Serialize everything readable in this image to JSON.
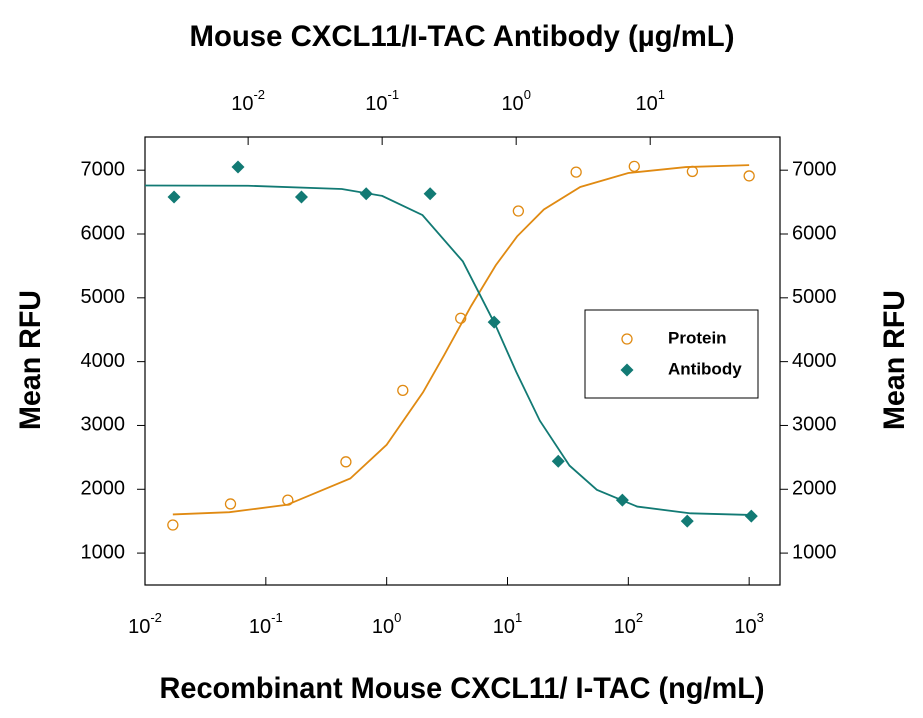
{
  "chart_data": {
    "type": "scatter",
    "xlabel": "Recombinant Mouse CXCL11/ I-TAC (ng/mL)",
    "x2label": "Mouse CXCL11/I-TAC Antibody (µg/mL)",
    "ylabel": "Mean RFU",
    "y2label": "Mean RFU",
    "xlog": true,
    "x2log": true,
    "xlim": [
      0.01,
      1800
    ],
    "x2lim": [
      0.0017,
      93
    ],
    "ylim": [
      500,
      7520
    ],
    "y2lim": [
      500,
      7520
    ],
    "xticks": [
      {
        "value": 0.01,
        "label": "10",
        "exponent": "-2"
      },
      {
        "value": 0.1,
        "label": "10",
        "exponent": "-1"
      },
      {
        "value": 1,
        "label": "10",
        "exponent": "0"
      },
      {
        "value": 10,
        "label": "10",
        "exponent": "1"
      },
      {
        "value": 100,
        "label": "10",
        "exponent": "2"
      },
      {
        "value": 1000,
        "label": "10",
        "exponent": "3"
      }
    ],
    "x2ticks": [
      {
        "value": 0.01,
        "label": "10",
        "exponent": "-2"
      },
      {
        "value": 0.1,
        "label": "10",
        "exponent": "-1"
      },
      {
        "value": 1,
        "label": "10",
        "exponent": "0"
      },
      {
        "value": 10,
        "label": "10",
        "exponent": "1"
      }
    ],
    "yticks": [
      1000,
      2000,
      3000,
      4000,
      5000,
      6000,
      7000
    ],
    "y2ticks": [
      1000,
      2000,
      3000,
      4000,
      5000,
      6000,
      7000
    ],
    "legend": "right",
    "series": [
      {
        "name": "Protein",
        "axis": "x",
        "marker": "open-circle",
        "color": "#e08a12",
        "x": [
          0.017,
          0.051,
          0.152,
          0.46,
          1.36,
          4.1,
          12.3,
          37,
          112,
          339,
          1000
        ],
        "values": [
          1440,
          1770,
          1830,
          2430,
          3550,
          4680,
          6360,
          6970,
          7060,
          6980,
          6910
        ],
        "fit": {
          "x": [
            0.017,
            0.05,
            0.15,
            0.5,
            1,
            2,
            3,
            5,
            8,
            12,
            20,
            40,
            100,
            300,
            1000
          ],
          "values": [
            1606,
            1641,
            1757,
            2169,
            2697,
            3520,
            4107,
            4872,
            5510,
            5962,
            6385,
            6737,
            6956,
            7049,
            7079
          ]
        }
      },
      {
        "name": "Antibody",
        "axis": "x2",
        "marker": "diamond",
        "color": "#127a74",
        "x": [
          0.0028,
          0.0084,
          0.025,
          0.076,
          0.228,
          0.685,
          2.06,
          6.2,
          18.9,
          56.8
        ],
        "values": [
          6580,
          7050,
          6580,
          6630,
          6630,
          4620,
          2440,
          1830,
          1500,
          1580
        ],
        "fit": {
          "x": [
            0.0017,
            0.01,
            0.05,
            0.1,
            0.2,
            0.4,
            0.7,
            1,
            1.5,
            2.5,
            4,
            8,
            20,
            60
          ],
          "values": [
            6760,
            6756,
            6705,
            6597,
            6296,
            5570,
            4573,
            3841,
            3076,
            2371,
            1991,
            1729,
            1623,
            1596
          ]
        }
      }
    ]
  }
}
